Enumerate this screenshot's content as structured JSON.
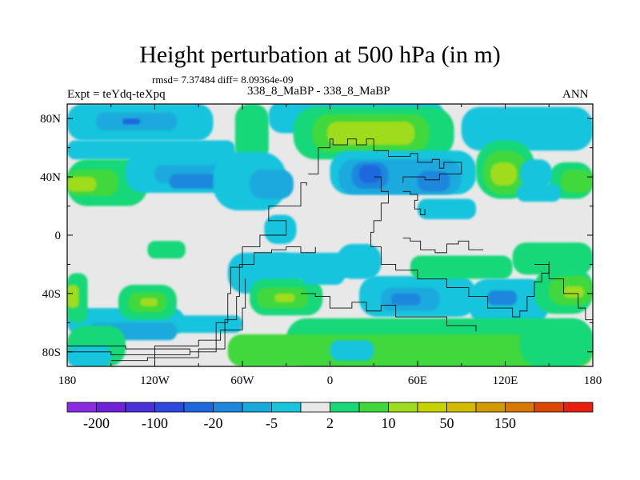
{
  "chart_data": {
    "type": "heatmap",
    "title": "Height perturbation at 500 hPa (in m)",
    "stats_line": "rmsd= 7.37484 diff= 8.09364e-09",
    "left_label": "Expt = teYdq-teXpq",
    "center_label": "338_8_MaBP - 338_8_MaBP",
    "right_label": "ANN",
    "xlim": [
      -180,
      180
    ],
    "ylim": [
      -90,
      90
    ],
    "x_ticks": [
      {
        "value": -180,
        "label": "180"
      },
      {
        "value": -120,
        "label": "120W"
      },
      {
        "value": -60,
        "label": "60W"
      },
      {
        "value": 0,
        "label": "0"
      },
      {
        "value": 60,
        "label": "60E"
      },
      {
        "value": 120,
        "label": "120E"
      },
      {
        "value": 180,
        "label": "180"
      }
    ],
    "y_ticks": [
      {
        "value": 80,
        "label": "80N"
      },
      {
        "value": 40,
        "label": "40N"
      },
      {
        "value": 0,
        "label": "0"
      },
      {
        "value": -40,
        "label": "40S"
      },
      {
        "value": -80,
        "label": "80S"
      }
    ],
    "colorbar": {
      "colors": [
        "#8a2be2",
        "#7020d8",
        "#4b2fd8",
        "#2e47e0",
        "#1f67dc",
        "#1c87dd",
        "#1aa9dd",
        "#19c4dd",
        "#e8e8e8",
        "#18d878",
        "#3fd83c",
        "#9edc1e",
        "#c8d200",
        "#d4ba00",
        "#d29a00",
        "#d77800",
        "#dc4600",
        "#e81e0f"
      ],
      "labels": [
        {
          "after_index": 0,
          "text": "-200"
        },
        {
          "after_index": 2,
          "text": "-100"
        },
        {
          "after_index": 4,
          "text": "-20"
        },
        {
          "after_index": 6,
          "text": "-5"
        },
        {
          "after_index": 8,
          "text": "2"
        },
        {
          "after_index": 10,
          "text": "10"
        },
        {
          "after_index": 12,
          "text": "50"
        },
        {
          "after_index": 14,
          "text": "150"
        }
      ]
    },
    "background_level": "#e8e8e8",
    "regions": [
      {
        "level": "#19c4dd",
        "lon": -180,
        "lat": 90,
        "w": 100,
        "h": 25
      },
      {
        "level": "#19c4dd",
        "lon": -180,
        "lat": 65,
        "w": 115,
        "h": 13
      },
      {
        "level": "#1aa9dd",
        "lon": -160,
        "lat": 84,
        "w": 55,
        "h": 12
      },
      {
        "level": "#1f67dc",
        "lon": -142,
        "lat": 80,
        "w": 12,
        "h": 4
      },
      {
        "level": "#18d878",
        "lon": -180,
        "lat": 52,
        "w": 55,
        "h": 32
      },
      {
        "level": "#3fd83c",
        "lon": -180,
        "lat": 45,
        "w": 35,
        "h": 18
      },
      {
        "level": "#9edc1e",
        "lon": -180,
        "lat": 40,
        "w": 20,
        "h": 10
      },
      {
        "level": "#19c4dd",
        "lon": -140,
        "lat": 57,
        "w": 80,
        "h": 28
      },
      {
        "level": "#1aa9dd",
        "lon": -120,
        "lat": 48,
        "w": 58,
        "h": 12
      },
      {
        "level": "#1c87dd",
        "lon": -110,
        "lat": 42,
        "w": 38,
        "h": 10
      },
      {
        "level": "#18d878",
        "lon": -65,
        "lat": 90,
        "w": 23,
        "h": 40
      },
      {
        "level": "#19c4dd",
        "lon": -80,
        "lat": 57,
        "w": 50,
        "h": 40
      },
      {
        "level": "#1aa9dd",
        "lon": -55,
        "lat": 45,
        "w": 30,
        "h": 20
      },
      {
        "level": "#19c4dd",
        "lon": -42,
        "lat": 92,
        "w": 120,
        "h": 22
      },
      {
        "level": "#18d878",
        "lon": -25,
        "lat": 88,
        "w": 110,
        "h": 36
      },
      {
        "level": "#3fd83c",
        "lon": -12,
        "lat": 83,
        "w": 80,
        "h": 26
      },
      {
        "level": "#9edc1e",
        "lon": -2,
        "lat": 78,
        "w": 60,
        "h": 16
      },
      {
        "level": "#19c4dd",
        "lon": 0,
        "lat": 58,
        "w": 100,
        "h": 30
      },
      {
        "level": "#1aa9dd",
        "lon": 6,
        "lat": 52,
        "w": 84,
        "h": 24
      },
      {
        "level": "#1c87dd",
        "lon": 15,
        "lat": 50,
        "w": 25,
        "h": 18
      },
      {
        "level": "#1f67dc",
        "lon": 20,
        "lat": 48,
        "w": 15,
        "h": 12
      },
      {
        "level": "#1c87dd",
        "lon": 60,
        "lat": 44,
        "w": 22,
        "h": 14
      },
      {
        "level": "#19c4dd",
        "lon": 90,
        "lat": 88,
        "w": 90,
        "h": 30
      },
      {
        "level": "#18d878",
        "lon": 100,
        "lat": 65,
        "w": 40,
        "h": 40
      },
      {
        "level": "#3fd83c",
        "lon": 105,
        "lat": 58,
        "w": 30,
        "h": 30
      },
      {
        "level": "#9edc1e",
        "lon": 110,
        "lat": 50,
        "w": 18,
        "h": 16
      },
      {
        "level": "#18d878",
        "lon": 150,
        "lat": 50,
        "w": 30,
        "h": 25
      },
      {
        "level": "#3fd83c",
        "lon": 158,
        "lat": 45,
        "w": 22,
        "h": 16
      },
      {
        "level": "#19c4dd",
        "lon": 130,
        "lat": 52,
        "w": 22,
        "h": 20
      },
      {
        "level": "#19c4dd",
        "lon": 128,
        "lat": 35,
        "w": 30,
        "h": 12
      },
      {
        "level": "#19c4dd",
        "lon": 60,
        "lat": 25,
        "w": 40,
        "h": 14
      },
      {
        "level": "#19c4dd",
        "lon": -45,
        "lat": 14,
        "w": 22,
        "h": 20
      },
      {
        "level": "#18d878",
        "lon": -125,
        "lat": -4,
        "w": 26,
        "h": 12
      },
      {
        "level": "#19c4dd",
        "lon": -180,
        "lat": -50,
        "w": 80,
        "h": 18
      },
      {
        "level": "#19c4dd",
        "lon": -130,
        "lat": -55,
        "w": 70,
        "h": 12
      },
      {
        "level": "#1aa9dd",
        "lon": -165,
        "lat": -60,
        "w": 60,
        "h": 12
      },
      {
        "level": "#18d878",
        "lon": -180,
        "lat": -26,
        "w": 14,
        "h": 34
      },
      {
        "level": "#9edc1e",
        "lon": -180,
        "lat": -34,
        "w": 8,
        "h": 16
      },
      {
        "level": "#18d878",
        "lon": -145,
        "lat": -34,
        "w": 40,
        "h": 24
      },
      {
        "level": "#3fd83c",
        "lon": -138,
        "lat": -39,
        "w": 26,
        "h": 14
      },
      {
        "level": "#9edc1e",
        "lon": -130,
        "lat": -43,
        "w": 12,
        "h": 6
      },
      {
        "level": "#19c4dd",
        "lon": -70,
        "lat": -12,
        "w": 50,
        "h": 28
      },
      {
        "level": "#19c4dd",
        "lon": -45,
        "lat": -12,
        "w": 60,
        "h": 18
      },
      {
        "level": "#19c4dd",
        "lon": 5,
        "lat": -6,
        "w": 30,
        "h": 24
      },
      {
        "level": "#18d878",
        "lon": -55,
        "lat": -30,
        "w": 50,
        "h": 25
      },
      {
        "level": "#3fd83c",
        "lon": -50,
        "lat": -36,
        "w": 35,
        "h": 14
      },
      {
        "level": "#9edc1e",
        "lon": -38,
        "lat": -40,
        "w": 14,
        "h": 6
      },
      {
        "level": "#19c4dd",
        "lon": -20,
        "lat": -20,
        "w": 30,
        "h": 14
      },
      {
        "level": "#19c4dd",
        "lon": 20,
        "lat": -28,
        "w": 80,
        "h": 28
      },
      {
        "level": "#1aa9dd",
        "lon": 35,
        "lat": -36,
        "w": 40,
        "h": 16
      },
      {
        "level": "#1c87dd",
        "lon": 42,
        "lat": -40,
        "w": 20,
        "h": 8
      },
      {
        "level": "#18d878",
        "lon": 55,
        "lat": -14,
        "w": 70,
        "h": 16
      },
      {
        "level": "#18d878",
        "lon": 125,
        "lat": -5,
        "w": 55,
        "h": 22
      },
      {
        "level": "#19c4dd",
        "lon": 95,
        "lat": -30,
        "w": 55,
        "h": 32
      },
      {
        "level": "#1c87dd",
        "lon": 108,
        "lat": -38,
        "w": 20,
        "h": 10
      },
      {
        "level": "#18d878",
        "lon": 140,
        "lat": -22,
        "w": 40,
        "h": 32
      },
      {
        "level": "#3fd83c",
        "lon": 150,
        "lat": -28,
        "w": 30,
        "h": 20
      },
      {
        "level": "#9edc1e",
        "lon": 160,
        "lat": -35,
        "w": 14,
        "h": 8
      },
      {
        "level": "#18d878",
        "lon": -180,
        "lat": -62,
        "w": 40,
        "h": 28
      },
      {
        "level": "#18d878",
        "lon": -30,
        "lat": -57,
        "w": 210,
        "h": 33
      },
      {
        "level": "#3fd83c",
        "lon": -70,
        "lat": -68,
        "w": 250,
        "h": 22
      },
      {
        "level": "#19c4dd",
        "lon": 0,
        "lat": -72,
        "w": 30,
        "h": 14
      },
      {
        "level": "#18d878",
        "lon": 130,
        "lat": -58,
        "w": 50,
        "h": 32
      },
      {
        "level": "#19c4dd",
        "lon": -180,
        "lat": -76,
        "w": 30,
        "h": 14
      }
    ],
    "land_outlines": [
      {
        "name": "south-america-west-coast",
        "points": [
          [
            -80,
            -90
          ],
          [
            -120,
            -90
          ],
          [
            -120,
            -82
          ],
          [
            -96,
            -80
          ],
          [
            -78,
            -60
          ],
          [
            -70,
            -40
          ],
          [
            -68,
            -22
          ],
          [
            -60,
            -8
          ],
          [
            -48,
            0
          ],
          [
            -30,
            2
          ],
          [
            -30,
            10
          ],
          [
            -40,
            10
          ],
          [
            -42,
            20
          ],
          [
            -20,
            36
          ],
          [
            -16,
            34
          ]
        ]
      },
      {
        "name": "south-america-inner",
        "points": [
          [
            -150,
            -86
          ],
          [
            -125,
            -84
          ],
          [
            -90,
            -78
          ],
          [
            -72,
            -58
          ],
          [
            -64,
            -42
          ],
          [
            -62,
            -20
          ],
          [
            -52,
            -12
          ],
          [
            -40,
            -10
          ],
          [
            -30,
            -8
          ],
          [
            -20,
            -12
          ],
          [
            -10,
            -8
          ]
        ]
      },
      {
        "name": "antarctic-shelf",
        "points": [
          [
            -180,
            -80
          ],
          [
            -150,
            -82
          ],
          [
            -120,
            -76
          ],
          [
            -90,
            -72
          ],
          [
            -75,
            -65
          ],
          [
            -60,
            -50
          ],
          [
            -58,
            -30
          ]
        ]
      },
      {
        "name": "african-block",
        "points": [
          [
            -15,
            42
          ],
          [
            -10,
            42
          ],
          [
            -8,
            60
          ],
          [
            0,
            66
          ],
          [
            2,
            62
          ],
          [
            12,
            66
          ],
          [
            18,
            62
          ],
          [
            25,
            66
          ],
          [
            30,
            58
          ],
          [
            40,
            54
          ],
          [
            55,
            56
          ],
          [
            60,
            50
          ],
          [
            70,
            52
          ],
          [
            75,
            46
          ],
          [
            78,
            50
          ],
          [
            85,
            50
          ],
          [
            90,
            42
          ],
          [
            75,
            38
          ],
          [
            65,
            40
          ],
          [
            50,
            36
          ]
        ]
      },
      {
        "name": "african-east-coast",
        "points": [
          [
            30,
            40
          ],
          [
            35,
            30
          ],
          [
            40,
            22
          ],
          [
            35,
            10
          ],
          [
            30,
            2
          ],
          [
            28,
            -8
          ],
          [
            35,
            -20
          ],
          [
            45,
            -24
          ],
          [
            60,
            -30
          ],
          [
            80,
            -36
          ],
          [
            95,
            -42
          ],
          [
            108,
            -50
          ],
          [
            125,
            -56
          ],
          [
            130,
            -52
          ],
          [
            135,
            -42
          ],
          [
            140,
            -32
          ],
          [
            145,
            -26
          ],
          [
            150,
            -18
          ]
        ]
      },
      {
        "name": "eastern-coast-south",
        "points": [
          [
            140,
            -20
          ],
          [
            150,
            -30
          ],
          [
            160,
            -40
          ],
          [
            170,
            -50
          ],
          [
            175,
            -58
          ],
          [
            180,
            -68
          ]
        ]
      },
      {
        "name": "island-chain-east",
        "points": [
          [
            50,
            30
          ],
          [
            55,
            28
          ],
          [
            60,
            24
          ],
          [
            58,
            18
          ],
          [
            62,
            14
          ],
          [
            65,
            18
          ]
        ]
      },
      {
        "name": "southern-peninsula",
        "points": [
          [
            50,
            -2
          ],
          [
            55,
            -4
          ],
          [
            62,
            -10
          ],
          [
            72,
            -12
          ],
          [
            80,
            -6
          ],
          [
            88,
            -4
          ],
          [
            95,
            -10
          ],
          [
            105,
            -10
          ]
        ]
      },
      {
        "name": "southern-ridge",
        "points": [
          [
            -20,
            -40
          ],
          [
            -10,
            -42
          ],
          [
            0,
            -50
          ],
          [
            15,
            -46
          ],
          [
            25,
            -52
          ],
          [
            35,
            -48
          ],
          [
            45,
            -56
          ],
          [
            60,
            -56
          ],
          [
            80,
            -62
          ],
          [
            100,
            -66
          ]
        ]
      },
      {
        "name": "south-ocean-ring",
        "points": [
          [
            -180,
            -76
          ],
          [
            -160,
            -76
          ],
          [
            -140,
            -78
          ],
          [
            -120,
            -78
          ],
          [
            -96,
            -80
          ]
        ]
      }
    ]
  }
}
